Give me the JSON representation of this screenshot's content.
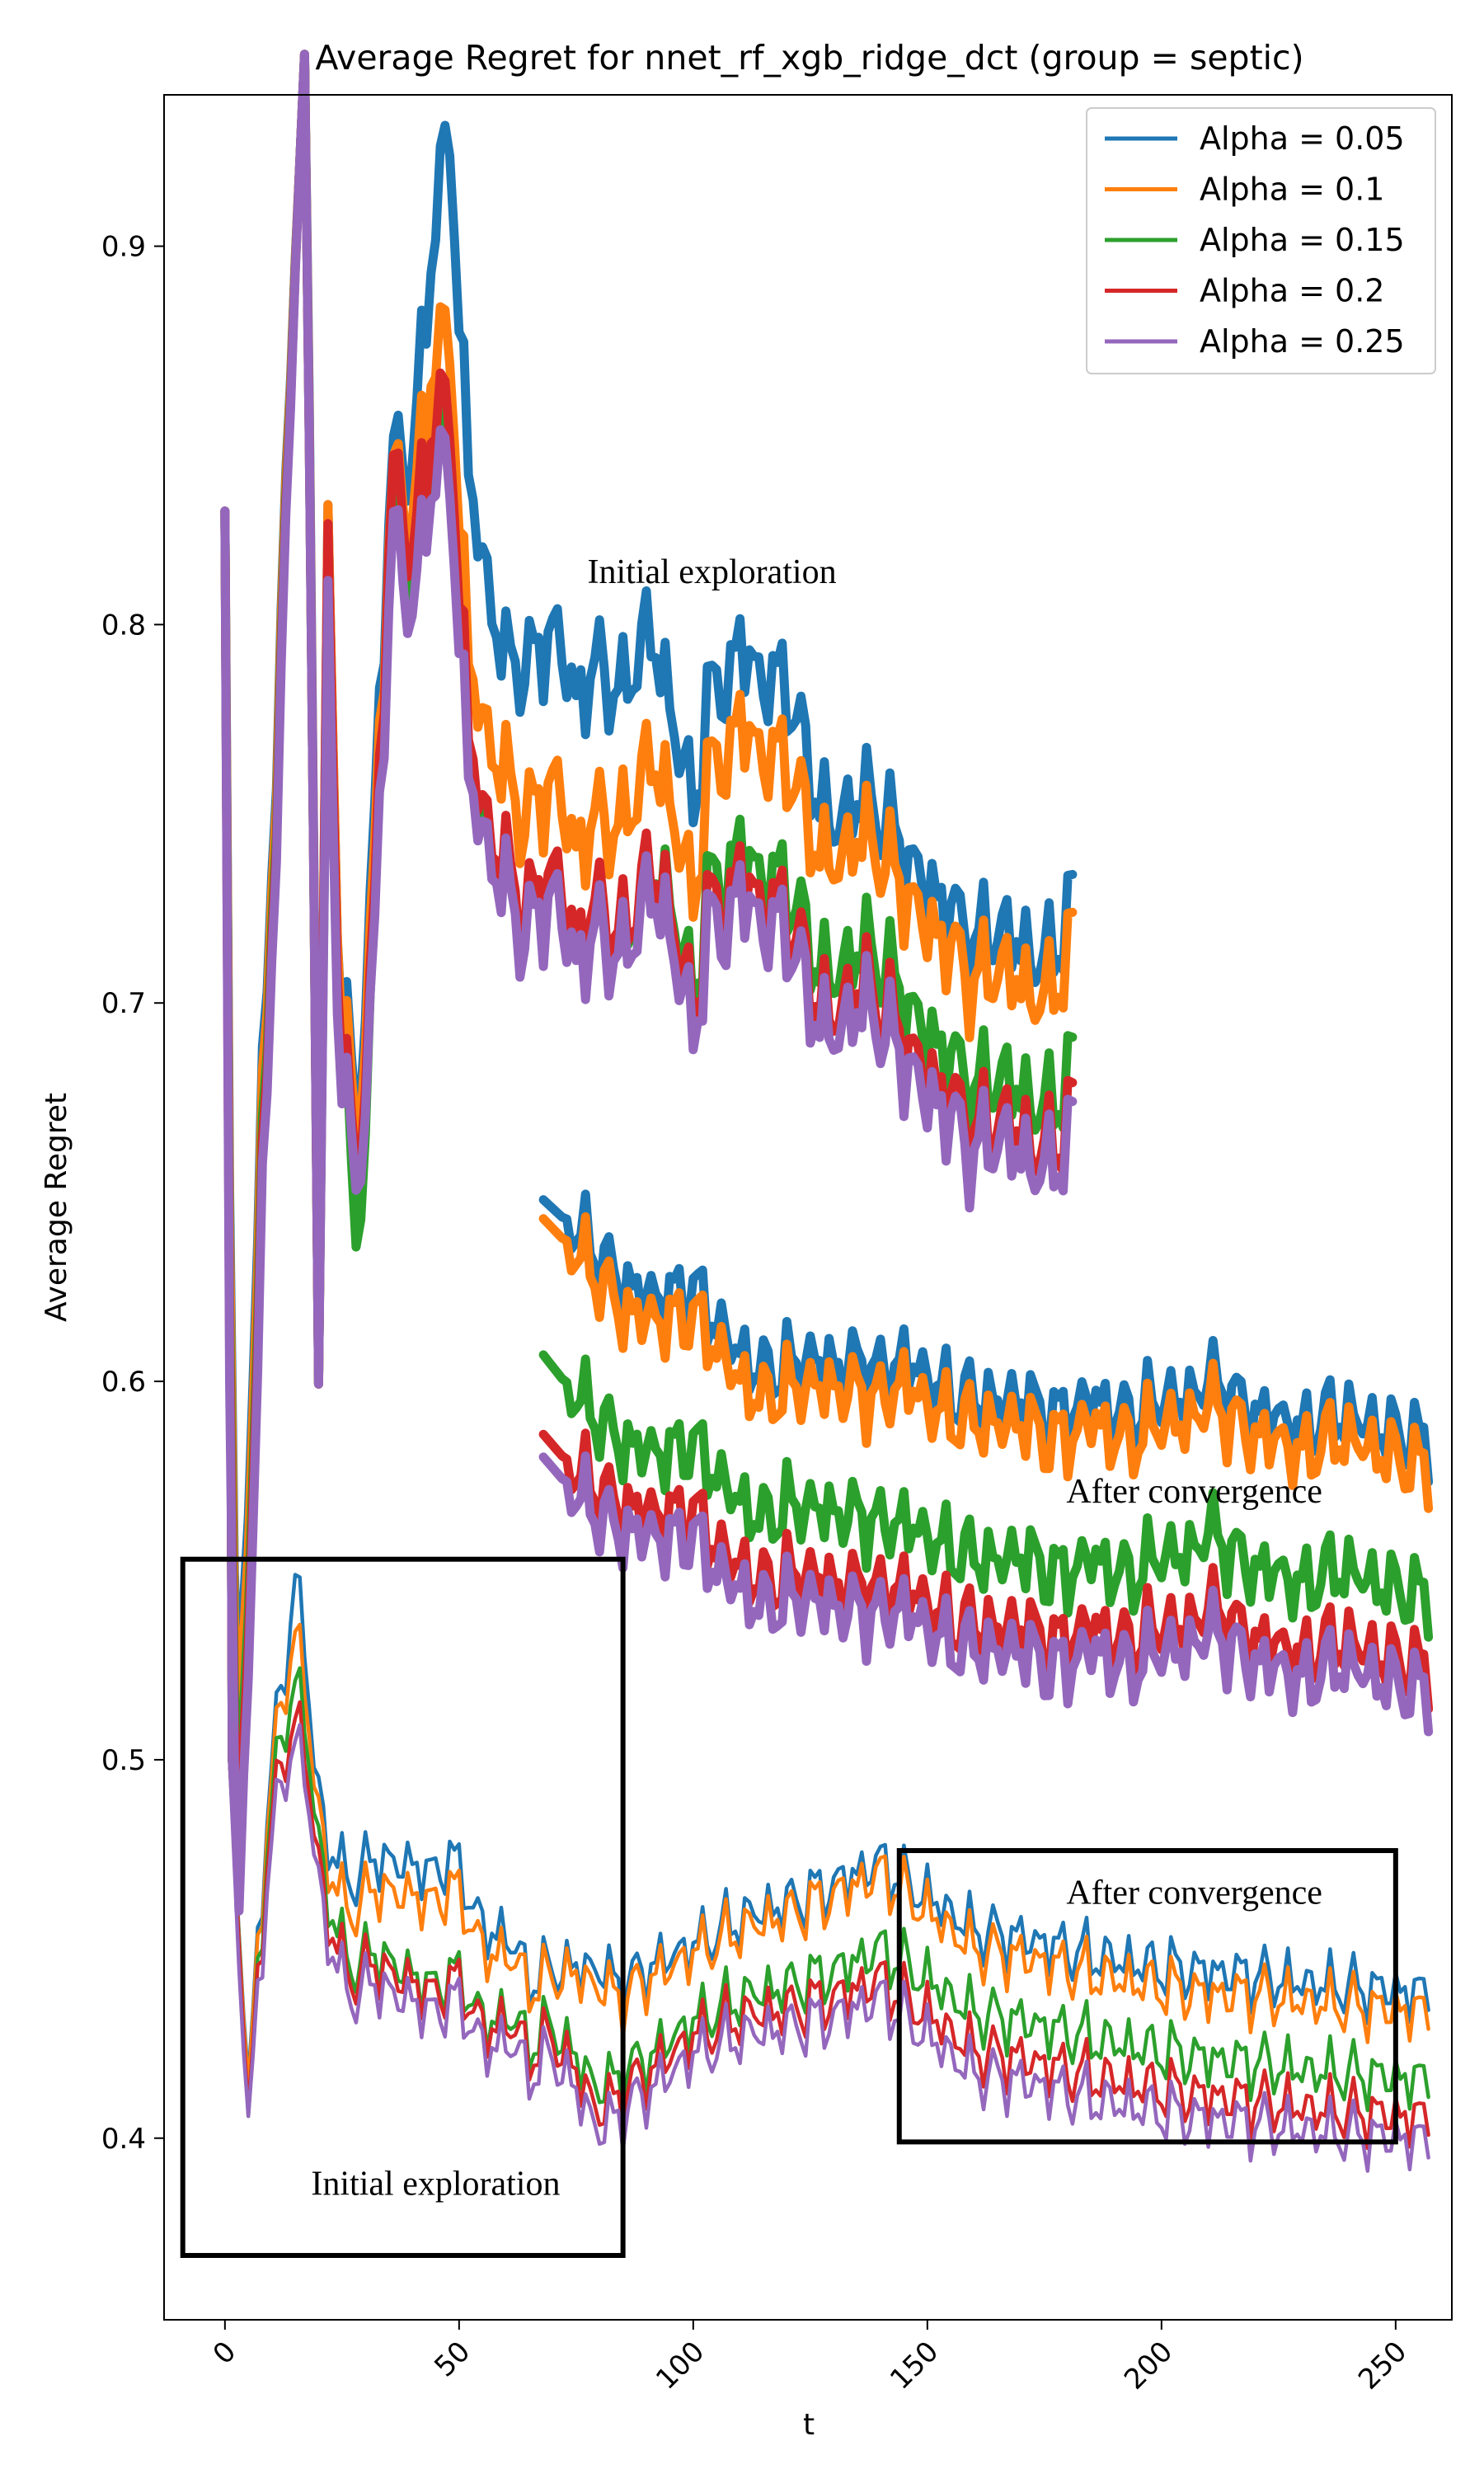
{
  "chart_data": {
    "type": "line",
    "title": "Average Regret for nnet_rf_xgb_ridge_dct (group = septic)",
    "xlabel": "t",
    "ylabel": "Average Regret",
    "xlim": [
      -13,
      262
    ],
    "ylim": [
      0.352,
      0.94
    ],
    "xticks": [
      0,
      50,
      100,
      150,
      200,
      250
    ],
    "xtick_labels": [
      "0",
      "50",
      "100",
      "150",
      "200",
      "250"
    ],
    "yticks": [
      0.4,
      0.5,
      0.6,
      0.7,
      0.8,
      0.9
    ],
    "ytick_labels": [
      "0.4",
      "0.5",
      "0.6",
      "0.7",
      "0.8",
      "0.9"
    ],
    "legend_position": "top-right",
    "series": [
      {
        "name": "Alpha = 0.05",
        "color": "#1f77b4"
      },
      {
        "name": "Alpha = 0.1",
        "color": "#ff7f0e"
      },
      {
        "name": "Alpha = 0.15",
        "color": "#2ca02c"
      },
      {
        "name": "Alpha = 0.2",
        "color": "#d62728"
      },
      {
        "name": "Alpha = 0.25",
        "color": "#9467bd"
      }
    ],
    "panels": [
      {
        "name": "full-run",
        "x_range": [
          0,
          257
        ],
        "anchors": {
          "x": [
            0,
            1,
            3,
            5,
            7,
            9,
            11,
            13,
            15,
            17,
            19,
            22,
            25,
            28,
            32,
            36,
            40,
            44,
            48,
            52,
            56,
            60,
            65,
            70,
            75,
            80,
            85,
            90,
            95,
            100,
            110,
            120,
            130,
            140,
            145,
            150,
            160,
            170,
            180,
            190,
            200,
            210,
            220,
            230,
            240,
            250,
            257
          ],
          "base": [
            0.83,
            0.5,
            0.45,
            0.4,
            0.44,
            0.47,
            0.49,
            0.5,
            0.51,
            0.5,
            0.48,
            0.455,
            0.445,
            0.44,
            0.445,
            0.44,
            0.44,
            0.435,
            0.44,
            0.435,
            0.425,
            0.43,
            0.42,
            0.425,
            0.415,
            0.405,
            0.41,
            0.415,
            0.42,
            0.425,
            0.43,
            0.432,
            0.435,
            0.44,
            0.435,
            0.43,
            0.42,
            0.418,
            0.415,
            0.412,
            0.41,
            0.408,
            0.407,
            0.405,
            0.404,
            0.403,
            0.402
          ]
        },
        "offsets": [
          [
            0,
            0,
            0.004,
            0.01,
            0.012,
            0.015,
            0.02,
            0.025,
            0.04,
            0.03,
            0.02,
            0.022,
            0.026,
            0.028,
            0.03,
            0.032,
            0.033,
            0.034,
            0.035,
            0.03,
            0.028,
            0.025,
            0.022,
            0.02,
            0.03,
            0.04,
            0.03,
            0.03,
            0.028,
            0.026,
            0.028,
            0.03,
            0.032,
            0.033,
            0.033,
            0.034,
            0.035,
            0.035,
            0.035,
            0.035,
            0.035,
            0.036,
            0.036,
            0.036,
            0.036,
            0.036,
            0.036
          ],
          [
            0,
            0,
            0.003,
            0.008,
            0.01,
            0.012,
            0.016,
            0.02,
            0.025,
            0.02,
            0.015,
            0.016,
            0.018,
            0.02,
            0.022,
            0.024,
            0.025,
            0.026,
            0.027,
            0.024,
            0.022,
            0.02,
            0.02,
            0.018,
            0.028,
            0.035,
            0.027,
            0.027,
            0.025,
            0.024,
            0.025,
            0.027,
            0.029,
            0.03,
            0.03,
            0.03,
            0.03,
            0.03,
            0.03,
            0.03,
            0.03,
            0.03,
            0.031,
            0.031,
            0.031,
            0.031,
            0.031
          ],
          [
            0,
            0,
            0.002,
            0,
            0.004,
            0.006,
            0.008,
            0.01,
            0.012,
            0.01,
            0.008,
            0.007,
            0.006,
            0.005,
            0.005,
            0.005,
            0.004,
            0.004,
            0.004,
            0.004,
            0.004,
            0.004,
            0.005,
            0.005,
            0.006,
            0.008,
            0.007,
            0.006,
            0.006,
            0.006,
            0.007,
            0.008,
            0.009,
            0.01,
            0.011,
            0.012,
            0.013,
            0.013,
            0.013,
            0.013,
            0.013,
            0.013,
            0.013,
            0.013,
            0.013,
            0.013,
            0.013
          ],
          [
            0,
            0,
            0.001,
            0.002,
            0.002,
            0.002,
            0.002,
            0.002,
            0.002,
            0.002,
            0.002,
            0.002,
            0.002,
            0.002,
            0.002,
            0.002,
            0.002,
            0.002,
            0.002,
            0.002,
            0.002,
            0.002,
            0.002,
            0.002,
            0.002,
            0.002,
            0.002,
            0.002,
            0.002,
            0.002,
            0.002,
            0.002,
            0.002,
            0.002,
            0.002,
            0.003,
            0.003,
            0.003,
            0.003,
            0.003,
            0.003,
            0.003,
            0.003,
            0.003,
            0.003,
            0.003,
            0.003
          ],
          [
            0,
            0,
            -0.005,
            0,
            -0.002,
            -0.003,
            -0.003,
            -0.003,
            -0.004,
            -0.004,
            -0.003,
            -0.003,
            -0.003,
            -0.003,
            -0.003,
            -0.003,
            -0.003,
            -0.003,
            -0.003,
            -0.003,
            -0.003,
            -0.003,
            -0.003,
            -0.003,
            -0.003,
            -0.003,
            -0.003,
            -0.003,
            -0.003,
            -0.003,
            -0.003,
            -0.003,
            -0.003,
            -0.003,
            -0.003,
            -0.003,
            -0.003,
            -0.003,
            -0.003,
            -0.003,
            -0.003,
            -0.003,
            -0.003,
            -0.003,
            -0.003,
            -0.003,
            -0.003
          ]
        ]
      },
      {
        "name": "zoom-initial-exploration",
        "x_range": [
          0,
          181
        ],
        "anchors": {
          "x": [
            0,
            1,
            2,
            3,
            16,
            17,
            18,
            20,
            22,
            24,
            26,
            28,
            32,
            36,
            40,
            44,
            48,
            52,
            56,
            60,
            63,
            66,
            70,
            75,
            80,
            85,
            90,
            95,
            100,
            103,
            107,
            110,
            115,
            120,
            125,
            130,
            135,
            140,
            145,
            150,
            155,
            160,
            165,
            170,
            175,
            181
          ],
          "base": [
            0.83,
            0.6,
            0.5,
            0.46,
            0.93,
            0.94,
            0.85,
            0.61,
            0.8,
            0.7,
            0.68,
            0.64,
            0.72,
            0.83,
            0.8,
            0.84,
            0.84,
            0.76,
            0.74,
            0.73,
            0.72,
            0.72,
            0.73,
            0.71,
            0.72,
            0.71,
            0.73,
            0.72,
            0.69,
            0.72,
            0.72,
            0.73,
            0.72,
            0.72,
            0.7,
            0.69,
            0.7,
            0.695,
            0.685,
            0.675,
            0.67,
            0.66,
            0.665,
            0.66,
            0.655,
            0.665
          ]
        },
        "offsets": [
          [
            0,
            0.05,
            0.05,
            0.05,
            0,
            0,
            0.01,
            0,
            0.02,
            0.02,
            0.02,
            0.02,
            0.03,
            0.02,
            0.04,
            0.06,
            0.09,
            0.08,
            0.07,
            0.06,
            0.07,
            0.07,
            0.07,
            0.07,
            0.07,
            0.07,
            0.07,
            0.06,
            0.06,
            0.06,
            0.065,
            0.065,
            0.065,
            0.065,
            0.06,
            0.055,
            0.055,
            0.055,
            0.055,
            0.055,
            0.055,
            0.055,
            0.055,
            0.055,
            0.055,
            0.06
          ],
          [
            0,
            0.04,
            0.04,
            0.04,
            0,
            0,
            0.005,
            0,
            0.02,
            0.02,
            0.015,
            0.015,
            0.02,
            0.015,
            0.025,
            0.03,
            0.035,
            0.03,
            0.03,
            0.03,
            0.03,
            0.03,
            0.03,
            0.03,
            0.03,
            0.035,
            0.035,
            0.035,
            0.035,
            0.04,
            0.045,
            0.045,
            0.045,
            0.045,
            0.045,
            0.045,
            0.045,
            0.045,
            0.045,
            0.045,
            0.045,
            0.045,
            0.045,
            0.045,
            0.045,
            0.05
          ],
          [
            0,
            0.02,
            0.02,
            0.02,
            0,
            0,
            0,
            0,
            0.005,
            0.005,
            0,
            -0.015,
            0.005,
            0.01,
            0.01,
            0.01,
            0.01,
            0.005,
            0.003,
            0.003,
            0.003,
            0.003,
            0.005,
            0.005,
            0.005,
            0.005,
            0.005,
            0.008,
            0.01,
            0.01,
            0.012,
            0.012,
            0.012,
            0.012,
            0.014,
            0.015,
            0.015,
            0.016,
            0.016,
            0.016,
            0.016,
            0.016,
            0.016,
            0.016,
            0.016,
            0.017
          ],
          [
            0,
            0.01,
            0.01,
            0.01,
            0,
            0,
            0,
            0,
            0.015,
            0.01,
            0.005,
            0.005,
            0.008,
            0.015,
            0.015,
            0.015,
            0.015,
            0.01,
            0.006,
            0.006,
            0.006,
            0.006,
            0.006,
            0.006,
            0.006,
            0.006,
            0.006,
            0.006,
            0.005,
            0.005,
            0.005,
            0.005,
            0.005,
            0.005,
            0.005,
            0.005,
            0.005,
            0.005,
            0.005,
            0.005,
            0.005,
            0.005,
            0.005,
            0.005,
            0.005,
            0.005
          ],
          [
            0,
            0,
            0,
            0,
            0,
            0,
            0,
            0,
            0,
            0,
            0,
            0,
            0,
            0,
            0,
            0,
            0,
            0,
            0,
            0,
            0,
            0,
            0,
            0,
            0,
            0,
            0,
            0,
            0,
            0,
            0,
            0,
            0,
            0,
            0,
            0,
            0,
            0,
            0,
            0,
            0,
            0,
            0,
            0,
            0,
            0
          ]
        ]
      },
      {
        "name": "zoom-after-convergence",
        "x_range": [
          68,
          257
        ],
        "anchors": {
          "x": [
            68,
            75,
            80,
            85,
            90,
            95,
            100,
            105,
            110,
            115,
            120,
            125,
            130,
            135,
            140,
            145,
            150,
            155,
            160,
            165,
            170,
            175,
            180,
            185,
            190,
            195,
            200,
            205,
            210,
            215,
            220,
            225,
            230,
            235,
            240,
            245,
            250,
            257
          ],
          "base": [
            0.58,
            0.57,
            0.565,
            0.56,
            0.56,
            0.558,
            0.56,
            0.55,
            0.545,
            0.54,
            0.542,
            0.543,
            0.54,
            0.54,
            0.538,
            0.54,
            0.535,
            0.53,
            0.53,
            0.528,
            0.53,
            0.525,
            0.525,
            0.53,
            0.525,
            0.525,
            0.53,
            0.528,
            0.535,
            0.53,
            0.525,
            0.525,
            0.52,
            0.525,
            0.525,
            0.522,
            0.52,
            0.518
          ]
        },
        "offsets": [
          [
            0.068,
            0.07,
            0.068,
            0.065,
            0.063,
            0.064,
            0.065,
            0.065,
            0.062,
            0.062,
            0.062,
            0.063,
            0.064,
            0.065,
            0.064,
            0.066,
            0.066,
            0.066,
            0.066,
            0.066,
            0.066,
            0.066,
            0.066,
            0.066,
            0.066,
            0.066,
            0.066,
            0.066,
            0.066,
            0.066,
            0.066,
            0.066,
            0.066,
            0.066,
            0.066,
            0.066,
            0.066,
            0.066
          ],
          [
            0.063,
            0.064,
            0.062,
            0.058,
            0.057,
            0.058,
            0.058,
            0.059,
            0.055,
            0.055,
            0.056,
            0.056,
            0.058,
            0.058,
            0.057,
            0.06,
            0.059,
            0.06,
            0.06,
            0.06,
            0.06,
            0.06,
            0.06,
            0.06,
            0.06,
            0.06,
            0.06,
            0.06,
            0.06,
            0.06,
            0.06,
            0.06,
            0.06,
            0.06,
            0.06,
            0.06,
            0.06,
            0.059
          ],
          [
            0.027,
            0.026,
            0.025,
            0.023,
            0.022,
            0.023,
            0.024,
            0.025,
            0.023,
            0.023,
            0.025,
            0.024,
            0.025,
            0.025,
            0.024,
            0.023,
            0.024,
            0.025,
            0.024,
            0.024,
            0.025,
            0.025,
            0.024,
            0.024,
            0.024,
            0.024,
            0.025,
            0.025,
            0.026,
            0.025,
            0.025,
            0.025,
            0.025,
            0.025,
            0.025,
            0.025,
            0.025,
            0.025
          ],
          [
            0.006,
            0.006,
            0.006,
            0.006,
            0.006,
            0.006,
            0.006,
            0.006,
            0.006,
            0.006,
            0.006,
            0.006,
            0.006,
            0.006,
            0.006,
            0.006,
            0.006,
            0.006,
            0.006,
            0.006,
            0.006,
            0.006,
            0.006,
            0.006,
            0.006,
            0.006,
            0.006,
            0.006,
            0.006,
            0.006,
            0.006,
            0.006,
            0.006,
            0.006,
            0.006,
            0.006,
            0.006,
            0.006
          ],
          [
            0,
            0,
            0,
            0,
            0,
            0,
            0,
            0,
            0,
            0,
            0,
            0,
            0,
            0,
            0,
            0,
            0,
            0,
            0,
            0,
            0,
            0,
            0,
            0,
            0,
            0,
            0,
            0,
            0,
            0,
            0,
            0,
            0,
            0,
            0,
            0,
            0,
            0
          ]
        ]
      }
    ],
    "annotations": [
      {
        "name": "annotation-initial-exploration-top",
        "text": "Initial exploration",
        "x": 104,
        "y": 0.811,
        "align": "center"
      },
      {
        "name": "annotation-after-convergence-upper",
        "text": "After convergence",
        "x": 207,
        "y": 0.568,
        "align": "center"
      },
      {
        "name": "annotation-after-convergence-lower",
        "text": "After convergence",
        "x": 207,
        "y": 0.462,
        "align": "center"
      },
      {
        "name": "annotation-initial-exploration-bottom",
        "text": "Initial exploration",
        "x": 45,
        "y": 0.385,
        "align": "center"
      }
    ],
    "highlight_boxes": [
      {
        "name": "highlight-box-initial",
        "x0": -9,
        "x1": 85,
        "y0": 0.369,
        "y1": 0.553
      },
      {
        "name": "highlight-box-convergence",
        "x0": 144,
        "x1": 250,
        "y0": 0.399,
        "y1": 0.476
      }
    ]
  }
}
